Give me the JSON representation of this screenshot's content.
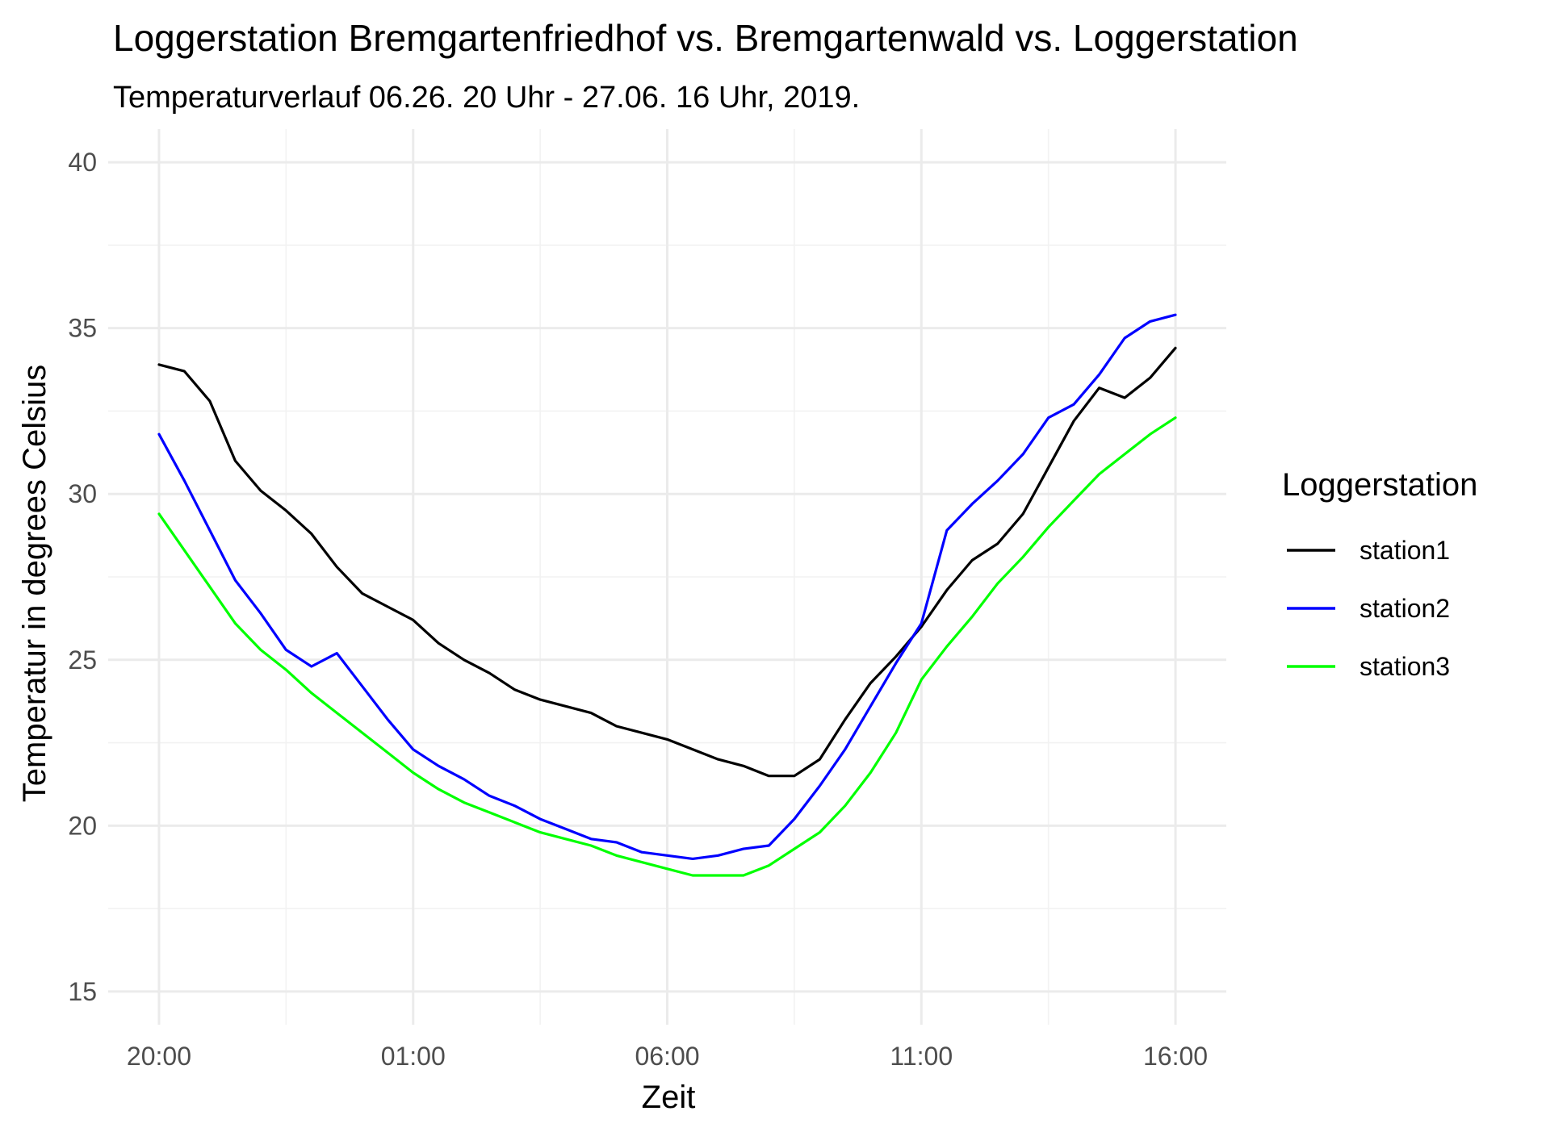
{
  "chart_data": {
    "type": "line",
    "title": "Loggerstation Bremgartenfriedhof vs. Bremgartenwald vs. Loggerstation",
    "subtitle": "Temperaturverlauf 06.26. 20 Uhr - 27.06. 16 Uhr, 2019.",
    "xlabel": "Zeit",
    "ylabel": "Temperatur in degrees Celsius",
    "x_unit": "hours",
    "x_tick_values": [
      0,
      5,
      10,
      15,
      20
    ],
    "x_tick_labels": [
      "20:00",
      "01:00",
      "06:00",
      "11:00",
      "16:00"
    ],
    "xlim": [
      -1,
      21
    ],
    "ylim": [
      14,
      41
    ],
    "y_ticks": [
      15,
      20,
      25,
      30,
      35,
      40
    ],
    "grid": true,
    "legend": {
      "title": "Loggerstation",
      "position": "right"
    },
    "series": [
      {
        "name": "station1",
        "color": "#000000",
        "x": [
          0,
          0.5,
          1,
          1.5,
          2,
          2.5,
          3,
          3.5,
          4,
          4.5,
          5,
          5.5,
          6,
          6.5,
          7,
          7.5,
          8,
          8.5,
          9,
          9.5,
          10,
          10.5,
          11,
          11.5,
          12,
          12.5,
          13,
          13.5,
          14,
          14.5,
          15,
          15.5,
          16,
          16.5,
          17,
          17.5,
          18,
          18.5,
          19,
          19.5,
          20
        ],
        "values": [
          33.9,
          33.7,
          32.8,
          31.0,
          30.1,
          29.5,
          28.8,
          27.8,
          27.0,
          26.6,
          26.2,
          25.5,
          25.0,
          24.6,
          24.1,
          23.8,
          23.6,
          23.4,
          23.0,
          22.8,
          22.6,
          22.3,
          22.0,
          21.8,
          21.5,
          21.5,
          22.0,
          23.2,
          24.3,
          25.1,
          26.0,
          27.1,
          28.0,
          28.5,
          29.4,
          30.8,
          32.2,
          33.2,
          32.9,
          33.5,
          34.4
        ]
      },
      {
        "name": "station2",
        "color": "#0000ff",
        "x": [
          0,
          0.5,
          1,
          1.5,
          2,
          2.5,
          3,
          3.5,
          4,
          4.5,
          5,
          5.5,
          6,
          6.5,
          7,
          7.5,
          8,
          8.5,
          9,
          9.5,
          10,
          10.5,
          11,
          11.5,
          12,
          12.5,
          13,
          13.5,
          14,
          14.5,
          15,
          15.5,
          16,
          16.5,
          17,
          17.5,
          18,
          18.5,
          19,
          19.5,
          20
        ],
        "values": [
          31.8,
          30.4,
          28.9,
          27.4,
          26.4,
          25.3,
          24.8,
          25.2,
          24.2,
          23.2,
          22.3,
          21.8,
          21.4,
          20.9,
          20.6,
          20.2,
          19.9,
          19.6,
          19.5,
          19.2,
          19.1,
          19.0,
          19.1,
          19.3,
          19.4,
          20.2,
          21.2,
          22.3,
          23.6,
          24.9,
          26.1,
          28.9,
          29.7,
          30.4,
          31.2,
          32.3,
          32.7,
          33.6,
          34.7,
          35.2,
          35.4
        ]
      },
      {
        "name": "station3",
        "color": "#00ff00",
        "x": [
          0,
          0.5,
          1,
          1.5,
          2,
          2.5,
          3,
          3.5,
          4,
          4.5,
          5,
          5.5,
          6,
          6.5,
          7,
          7.5,
          8,
          8.5,
          9,
          9.5,
          10,
          10.5,
          11,
          11.5,
          12,
          12.5,
          13,
          13.5,
          14,
          14.5,
          15,
          15.5,
          16,
          16.5,
          17,
          17.5,
          18,
          18.5,
          19,
          19.5,
          20
        ],
        "values": [
          29.4,
          28.3,
          27.2,
          26.1,
          25.3,
          24.7,
          24.0,
          23.4,
          22.8,
          22.2,
          21.6,
          21.1,
          20.7,
          20.4,
          20.1,
          19.8,
          19.6,
          19.4,
          19.1,
          18.9,
          18.7,
          18.5,
          18.5,
          18.5,
          18.8,
          19.3,
          19.8,
          20.6,
          21.6,
          22.8,
          24.4,
          25.4,
          26.3,
          27.3,
          28.1,
          29.0,
          29.8,
          30.6,
          31.2,
          31.8,
          32.3
        ]
      }
    ]
  }
}
